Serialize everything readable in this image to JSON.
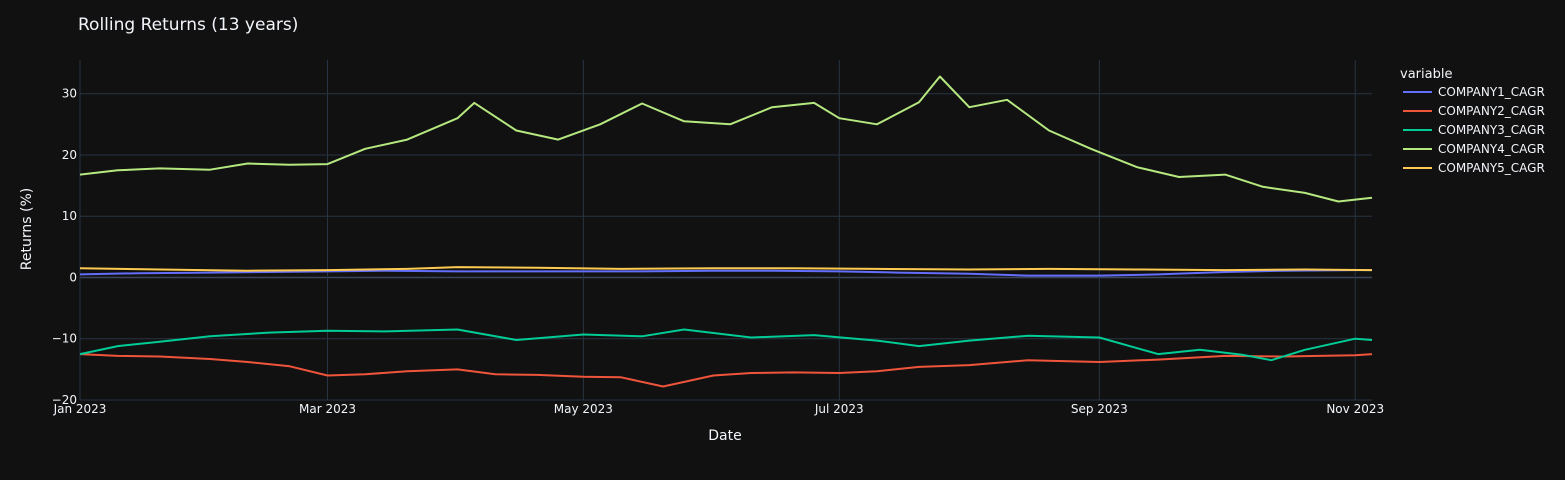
{
  "chart_data": {
    "type": "line",
    "title": "Rolling Returns (13 years)",
    "xlabel": "Date",
    "ylabel": "Returns (%)",
    "x_range": [
      "2023-01-01",
      "2023-11-05"
    ],
    "ylim": [
      -20,
      35.5
    ],
    "y_ticks": [
      -20,
      -10,
      0,
      10,
      20,
      30
    ],
    "y_tick_labels": [
      "−20",
      "−10",
      "0",
      "10",
      "20",
      "30"
    ],
    "x_ticks": [
      {
        "date": "2023-01-01",
        "label": "Jan 2023"
      },
      {
        "date": "2023-03-01",
        "label": "Mar 2023"
      },
      {
        "date": "2023-05-01",
        "label": "May 2023"
      },
      {
        "date": "2023-07-01",
        "label": "Jul 2023"
      },
      {
        "date": "2023-09-01",
        "label": "Sep 2023"
      },
      {
        "date": "2023-11-01",
        "label": "Nov 2023"
      }
    ],
    "grid": true,
    "legend_title": "variable",
    "legend_position": "right",
    "series": [
      {
        "name": "COMPANY1_CAGR",
        "color": "#636efa",
        "points": [
          [
            "2023-01-01",
            0.5
          ],
          [
            "2023-01-15",
            0.7
          ],
          [
            "2023-02-01",
            0.8
          ],
          [
            "2023-02-15",
            0.9
          ],
          [
            "2023-03-01",
            1.0
          ],
          [
            "2023-03-15",
            1.1
          ],
          [
            "2023-04-01",
            1.0
          ],
          [
            "2023-04-15",
            1.0
          ],
          [
            "2023-05-01",
            1.0
          ],
          [
            "2023-05-15",
            1.0
          ],
          [
            "2023-06-01",
            1.1
          ],
          [
            "2023-06-15",
            1.1
          ],
          [
            "2023-07-01",
            1.0
          ],
          [
            "2023-07-15",
            0.8
          ],
          [
            "2023-08-01",
            0.6
          ],
          [
            "2023-08-15",
            0.3
          ],
          [
            "2023-09-01",
            0.3
          ],
          [
            "2023-09-15",
            0.5
          ],
          [
            "2023-10-01",
            0.9
          ],
          [
            "2023-10-15",
            1.1
          ],
          [
            "2023-11-01",
            1.2
          ],
          [
            "2023-11-05",
            1.2
          ]
        ]
      },
      {
        "name": "COMPANY2_CAGR",
        "color": "#ef553b",
        "points": [
          [
            "2023-01-01",
            -12.5
          ],
          [
            "2023-01-10",
            -12.8
          ],
          [
            "2023-01-20",
            -12.9
          ],
          [
            "2023-02-01",
            -13.3
          ],
          [
            "2023-02-10",
            -13.8
          ],
          [
            "2023-02-20",
            -14.5
          ],
          [
            "2023-03-01",
            -16.0
          ],
          [
            "2023-03-10",
            -15.8
          ],
          [
            "2023-03-20",
            -15.3
          ],
          [
            "2023-04-01",
            -15.0
          ],
          [
            "2023-04-10",
            -15.8
          ],
          [
            "2023-04-20",
            -15.9
          ],
          [
            "2023-05-01",
            -16.2
          ],
          [
            "2023-05-10",
            -16.3
          ],
          [
            "2023-05-20",
            -17.8
          ],
          [
            "2023-06-01",
            -16.0
          ],
          [
            "2023-06-10",
            -15.6
          ],
          [
            "2023-06-20",
            -15.5
          ],
          [
            "2023-07-01",
            -15.6
          ],
          [
            "2023-07-10",
            -15.3
          ],
          [
            "2023-07-20",
            -14.6
          ],
          [
            "2023-08-01",
            -14.3
          ],
          [
            "2023-08-15",
            -13.5
          ],
          [
            "2023-09-01",
            -13.8
          ],
          [
            "2023-09-15",
            -13.4
          ],
          [
            "2023-10-01",
            -12.8
          ],
          [
            "2023-10-15",
            -12.9
          ],
          [
            "2023-11-01",
            -12.7
          ],
          [
            "2023-11-05",
            -12.5
          ]
        ]
      },
      {
        "name": "COMPANY3_CAGR",
        "color": "#00cc96",
        "points": [
          [
            "2023-01-01",
            -12.5
          ],
          [
            "2023-01-10",
            -11.2
          ],
          [
            "2023-01-20",
            -10.5
          ],
          [
            "2023-02-01",
            -9.6
          ],
          [
            "2023-02-15",
            -9.0
          ],
          [
            "2023-03-01",
            -8.7
          ],
          [
            "2023-03-15",
            -8.8
          ],
          [
            "2023-04-01",
            -8.5
          ],
          [
            "2023-04-15",
            -10.2
          ],
          [
            "2023-05-01",
            -9.3
          ],
          [
            "2023-05-15",
            -9.6
          ],
          [
            "2023-05-25",
            -8.5
          ],
          [
            "2023-06-10",
            -9.8
          ],
          [
            "2023-06-25",
            -9.4
          ],
          [
            "2023-07-10",
            -10.3
          ],
          [
            "2023-07-20",
            -11.2
          ],
          [
            "2023-08-01",
            -10.3
          ],
          [
            "2023-08-15",
            -9.5
          ],
          [
            "2023-09-01",
            -9.8
          ],
          [
            "2023-09-15",
            -12.5
          ],
          [
            "2023-09-25",
            -11.8
          ],
          [
            "2023-10-05",
            -12.6
          ],
          [
            "2023-10-12",
            -13.5
          ],
          [
            "2023-10-20",
            -11.8
          ],
          [
            "2023-11-01",
            -10.0
          ],
          [
            "2023-11-05",
            -10.2
          ]
        ]
      },
      {
        "name": "COMPANY4_CAGR",
        "color": "#b6e880",
        "points": [
          [
            "2023-01-01",
            16.8
          ],
          [
            "2023-01-10",
            17.5
          ],
          [
            "2023-01-20",
            17.8
          ],
          [
            "2023-02-01",
            17.6
          ],
          [
            "2023-02-10",
            18.6
          ],
          [
            "2023-02-20",
            18.4
          ],
          [
            "2023-03-01",
            18.5
          ],
          [
            "2023-03-10",
            21.0
          ],
          [
            "2023-03-20",
            22.5
          ],
          [
            "2023-04-01",
            26.0
          ],
          [
            "2023-04-05",
            28.5
          ],
          [
            "2023-04-15",
            24.0
          ],
          [
            "2023-04-25",
            22.5
          ],
          [
            "2023-05-05",
            25.0
          ],
          [
            "2023-05-15",
            28.4
          ],
          [
            "2023-05-25",
            25.5
          ],
          [
            "2023-06-05",
            25.0
          ],
          [
            "2023-06-15",
            27.8
          ],
          [
            "2023-06-25",
            28.5
          ],
          [
            "2023-07-01",
            26.0
          ],
          [
            "2023-07-10",
            25.0
          ],
          [
            "2023-07-20",
            28.6
          ],
          [
            "2023-07-25",
            32.8
          ],
          [
            "2023-08-01",
            27.8
          ],
          [
            "2023-08-10",
            29.0
          ],
          [
            "2023-08-20",
            24.0
          ],
          [
            "2023-08-30",
            21.0
          ],
          [
            "2023-09-10",
            18.0
          ],
          [
            "2023-09-20",
            16.4
          ],
          [
            "2023-10-01",
            16.8
          ],
          [
            "2023-10-10",
            14.8
          ],
          [
            "2023-10-20",
            13.8
          ],
          [
            "2023-10-28",
            12.4
          ],
          [
            "2023-11-05",
            13.0
          ]
        ]
      },
      {
        "name": "COMPANY5_CAGR",
        "color": "#fecb52",
        "points": [
          [
            "2023-01-01",
            1.5
          ],
          [
            "2023-01-20",
            1.3
          ],
          [
            "2023-02-10",
            1.1
          ],
          [
            "2023-03-01",
            1.2
          ],
          [
            "2023-03-20",
            1.4
          ],
          [
            "2023-04-01",
            1.7
          ],
          [
            "2023-04-20",
            1.6
          ],
          [
            "2023-05-10",
            1.4
          ],
          [
            "2023-06-01",
            1.5
          ],
          [
            "2023-06-20",
            1.5
          ],
          [
            "2023-07-10",
            1.4
          ],
          [
            "2023-08-01",
            1.3
          ],
          [
            "2023-08-20",
            1.4
          ],
          [
            "2023-09-10",
            1.3
          ],
          [
            "2023-10-01",
            1.2
          ],
          [
            "2023-10-20",
            1.3
          ],
          [
            "2023-11-05",
            1.2
          ]
        ]
      }
    ]
  }
}
